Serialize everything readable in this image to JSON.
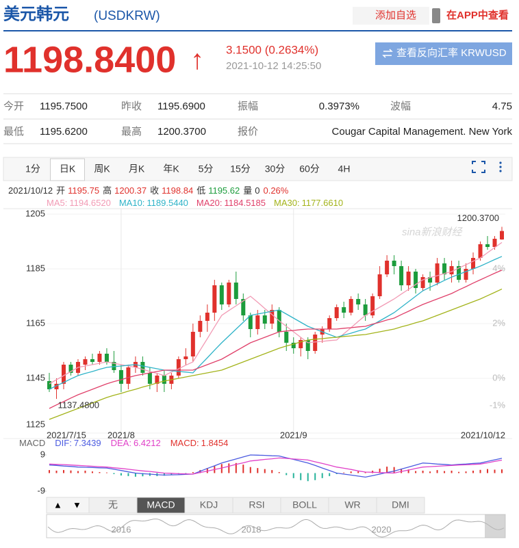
{
  "header": {
    "title": "美元韩元",
    "code": "(USDKRW)",
    "add": "添加自选",
    "app": "在APP中查看"
  },
  "quote": {
    "price": "1198.8400",
    "arrow": "↑",
    "change": "3.1500 (0.2634%)",
    "time": "2021-10-12 14:25:50",
    "reverse_button": "查看反向汇率 KRWUSD"
  },
  "stats": {
    "rows": [
      [
        {
          "label": "今开",
          "value": "1195.7500"
        },
        {
          "label": "昨收",
          "value": "1195.6900"
        },
        {
          "label": "振幅",
          "value": "0.3973%"
        },
        {
          "label": "波幅",
          "value": "4.75"
        }
      ],
      [
        {
          "label": "最低",
          "value": "1195.6200"
        },
        {
          "label": "最高",
          "value": "1200.3700"
        },
        {
          "label": "报价",
          "value": "Cougar Capital Management. New York"
        }
      ]
    ]
  },
  "tabs": {
    "items": [
      "1分",
      "日K",
      "周K",
      "月K",
      "年K",
      "5分",
      "15分",
      "30分",
      "60分",
      "4H"
    ],
    "active": 1
  },
  "ohlc_line": {
    "date": "2021/10/12",
    "items": [
      {
        "label": "开",
        "value": "1195.75",
        "color": "#e0312c"
      },
      {
        "label": "高",
        "value": "1200.37",
        "color": "#e0312c"
      },
      {
        "label": "收",
        "value": "1198.84",
        "color": "#e0312c"
      },
      {
        "label": "低",
        "value": "1195.62",
        "color": "#1c9c3c"
      },
      {
        "label": "量",
        "value": "0",
        "color": "#333333"
      }
    ],
    "change": "0.26%",
    "change_color": "#e0312c"
  },
  "chart_data": {
    "type": "candlestick",
    "watermark": "sina新浪财经",
    "up_color": "#e0312c",
    "down_color": "#1c9c3c",
    "categories": [
      "2021/7/15",
      null,
      null,
      null,
      null,
      null,
      null,
      null,
      null,
      null,
      "2021/8",
      null,
      null,
      null,
      null,
      null,
      null,
      null,
      null,
      null,
      null,
      null,
      null,
      null,
      null,
      null,
      null,
      null,
      null,
      null,
      null,
      null,
      null,
      null,
      "2021/9",
      null,
      null,
      null,
      null,
      null,
      null,
      null,
      null,
      null,
      null,
      null,
      null,
      null,
      null,
      null,
      null,
      null,
      null,
      null,
      null,
      null,
      null,
      null,
      null,
      null,
      null,
      null,
      null,
      "2021/10/12"
    ],
    "ohlc": [
      [
        1144,
        1147,
        1140,
        1141
      ],
      [
        1141,
        1145,
        1137.48,
        1143
      ],
      [
        1143,
        1151,
        1141,
        1150
      ],
      [
        1150,
        1151,
        1146,
        1147
      ],
      [
        1147,
        1152,
        1146,
        1151
      ],
      [
        1150,
        1153,
        1148,
        1152
      ],
      [
        1152,
        1154,
        1150,
        1151
      ],
      [
        1151,
        1155,
        1150,
        1154
      ],
      [
        1154,
        1156,
        1150,
        1151
      ],
      [
        1151,
        1155,
        1147,
        1148
      ],
      [
        1148,
        1150,
        1140,
        1143
      ],
      [
        1143,
        1150,
        1141,
        1149
      ],
      [
        1149,
        1153,
        1147,
        1151
      ],
      [
        1151,
        1153,
        1146,
        1147
      ],
      [
        1147,
        1149,
        1141,
        1143
      ],
      [
        1143,
        1147,
        1140,
        1146
      ],
      [
        1146,
        1148,
        1140,
        1143
      ],
      [
        1143,
        1147,
        1141,
        1146
      ],
      [
        1146,
        1153,
        1145,
        1152
      ],
      [
        1152,
        1156,
        1150,
        1153
      ],
      [
        1153,
        1165,
        1151,
        1162
      ],
      [
        1162,
        1168,
        1160,
        1166
      ],
      [
        1166,
        1172,
        1162,
        1169
      ],
      [
        1169,
        1181,
        1166,
        1179
      ],
      [
        1179,
        1180,
        1170,
        1172
      ],
      [
        1172,
        1181,
        1171,
        1180
      ],
      [
        1180,
        1184,
        1172,
        1174
      ],
      [
        1174,
        1176,
        1166,
        1168
      ],
      [
        1168,
        1169,
        1160,
        1163
      ],
      [
        1163,
        1170,
        1161,
        1168
      ],
      [
        1168,
        1170,
        1163,
        1165
      ],
      [
        1165,
        1172,
        1163,
        1170
      ],
      [
        1170,
        1171,
        1160,
        1162
      ],
      [
        1162,
        1165,
        1155,
        1158
      ],
      [
        1158,
        1160,
        1154,
        1156
      ],
      [
        1156,
        1160,
        1153,
        1159
      ],
      [
        1159,
        1160,
        1152,
        1155
      ],
      [
        1155,
        1162,
        1154,
        1161
      ],
      [
        1161,
        1164,
        1158,
        1163
      ],
      [
        1163,
        1168,
        1162,
        1167
      ],
      [
        1167,
        1172,
        1166,
        1171
      ],
      [
        1171,
        1173,
        1167,
        1169
      ],
      [
        1169,
        1175,
        1168,
        1174
      ],
      [
        1174,
        1176,
        1170,
        1172
      ],
      [
        1172,
        1174,
        1166,
        1168
      ],
      [
        1168,
        1176,
        1167,
        1175
      ],
      [
        1175,
        1186,
        1174,
        1183
      ],
      [
        1183,
        1190,
        1182,
        1188
      ],
      [
        1188,
        1190,
        1183,
        1186
      ],
      [
        1186,
        1188,
        1177,
        1179
      ],
      [
        1179,
        1186,
        1177,
        1184
      ],
      [
        1184,
        1185,
        1176,
        1178
      ],
      [
        1178,
        1183,
        1177,
        1182
      ],
      [
        1182,
        1184,
        1177,
        1180
      ],
      [
        1180,
        1189,
        1179,
        1187
      ],
      [
        1187,
        1189,
        1181,
        1183
      ],
      [
        1183,
        1188,
        1180,
        1186
      ],
      [
        1186,
        1188,
        1180,
        1181
      ],
      [
        1181,
        1187,
        1180,
        1185
      ],
      [
        1185,
        1191,
        1183,
        1189
      ],
      [
        1189,
        1195,
        1188,
        1194
      ],
      [
        1194,
        1197,
        1192,
        1193
      ],
      [
        1193,
        1197,
        1192,
        1196
      ],
      [
        1195.75,
        1200.37,
        1195.62,
        1198.84
      ]
    ],
    "high_label": "1200.3700",
    "low_label": "1137.4800",
    "ylim": [
      1125,
      1207
    ],
    "yticks": [
      1205,
      1185,
      1165,
      1145,
      1125
    ],
    "y2lim": [
      -2,
      6.2
    ],
    "y2ticks": [
      {
        "value": 4,
        "label": "4%"
      },
      {
        "value": 2,
        "label": "2%"
      },
      {
        "value": 0,
        "label": "0%"
      },
      {
        "value": -1,
        "label": "-1%"
      }
    ],
    "ma": {
      "series": [
        {
          "name": "MA5:",
          "label": "1194.6520",
          "color": "#f29bb5",
          "values": [
            1143,
            1144.5,
            1146,
            1147.5,
            1149,
            1149.5,
            1150,
            1150.5,
            1151,
            1150.5,
            1150,
            1149.5,
            1149,
            1148.3,
            1147.5,
            1146.8,
            1146,
            1147.3,
            1148.5,
            1149.8,
            1151,
            1155.3,
            1159.5,
            1163.8,
            1168,
            1169.8,
            1171.5,
            1173.3,
            1175,
            1172.8,
            1170.5,
            1168.3,
            1166,
            1164,
            1162,
            1160,
            1158,
            1158.3,
            1158.5,
            1158.8,
            1159,
            1161.3,
            1163.5,
            1165.8,
            1168,
            1169.5,
            1171,
            1172.5,
            1174,
            1175.8,
            1177.5,
            1179.3,
            1181,
            1181.8,
            1182.5,
            1183.3,
            1184,
            1185.3,
            1186.5,
            1187.8,
            1189,
            1190.9,
            1192.8,
            1194.652
          ]
        },
        {
          "name": "MA10:",
          "label": "1189.5440",
          "color": "#2eb3c8",
          "values": [
            1141,
            1142.3,
            1143.5,
            1144.8,
            1146,
            1146.8,
            1147.5,
            1148.3,
            1149,
            1149.3,
            1149.5,
            1149.8,
            1150,
            1149.5,
            1149,
            1148.5,
            1148,
            1147.8,
            1147.5,
            1147.3,
            1147,
            1149.8,
            1152.5,
            1155.3,
            1158,
            1160.5,
            1163,
            1165.5,
            1168,
            1168.5,
            1169,
            1169.5,
            1170,
            1168.5,
            1167,
            1165.5,
            1164,
            1163,
            1162,
            1161,
            1160,
            1160.8,
            1161.5,
            1162.3,
            1163,
            1164.5,
            1166,
            1167.5,
            1169,
            1171,
            1173,
            1175,
            1177,
            1178.3,
            1179.5,
            1180.8,
            1182,
            1183,
            1184,
            1185,
            1186,
            1187.2,
            1188.4,
            1189.544
          ]
        },
        {
          "name": "MA20:",
          "label": "1184.5185",
          "color": "#e0406a",
          "values": [
            1134,
            1135.3,
            1136.5,
            1137.8,
            1139,
            1140,
            1141,
            1142,
            1143,
            1143.8,
            1144.5,
            1145.3,
            1146,
            1146.5,
            1147,
            1147.5,
            1148,
            1148,
            1148,
            1148,
            1148,
            1149,
            1150,
            1151,
            1152,
            1153.5,
            1155,
            1156.5,
            1158,
            1159,
            1160,
            1161,
            1162,
            1162.3,
            1162.5,
            1162.8,
            1163,
            1163,
            1163,
            1163,
            1163,
            1163.3,
            1163.5,
            1163.8,
            1164,
            1164.8,
            1165.5,
            1166.3,
            1167,
            1168.3,
            1169.5,
            1170.8,
            1172,
            1173,
            1174,
            1175,
            1176,
            1177.3,
            1178.5,
            1179.8,
            1181,
            1182.2,
            1183.4,
            1184.5185
          ]
        },
        {
          "name": "MA30:",
          "label": "1177.6610",
          "color": "#a3b31a",
          "values": [
            1130,
            1131,
            1132,
            1133,
            1134,
            1135,
            1136,
            1137,
            1138,
            1138.8,
            1139.5,
            1140.3,
            1141,
            1141.8,
            1142.5,
            1143.3,
            1144,
            1144.5,
            1145,
            1145.5,
            1146,
            1146.5,
            1147,
            1147.5,
            1148,
            1149,
            1150,
            1151,
            1152,
            1153,
            1154,
            1155,
            1156,
            1156.8,
            1157.5,
            1158.3,
            1159,
            1159.3,
            1159.5,
            1159.8,
            1160,
            1160.3,
            1160.5,
            1160.8,
            1161,
            1161.5,
            1162,
            1162.5,
            1163,
            1163.8,
            1164.5,
            1165.3,
            1166,
            1167,
            1168,
            1169,
            1170,
            1171,
            1172,
            1173,
            1174,
            1175.2,
            1176.4,
            1177.661
          ]
        }
      ]
    },
    "macd": {
      "title": "MACD",
      "ylim": [
        -9,
        9
      ],
      "yticks": [
        9,
        -9
      ],
      "bar_name": "MACD:",
      "bar_label": "1.8454",
      "bar_color": "#e0312c",
      "neg_color": "#26b39a",
      "bars": [
        1.5,
        1.2,
        1.5,
        1.3,
        1.0,
        1.2,
        0.8,
        0.5,
        0.3,
        -0.5,
        -1.2,
        -1.5,
        -1.8,
        -1.6,
        -1.4,
        -1.5,
        -1.3,
        -1.0,
        -0.6,
        -0.2,
        0.5,
        1.5,
        2.5,
        3.5,
        4.5,
        4.8,
        5.0,
        4.2,
        3.0,
        2.5,
        2.0,
        1.5,
        0.5,
        -1.0,
        -2.5,
        -3.5,
        -4.0,
        -3.5,
        -2.5,
        -1.5,
        -0.5,
        0.3,
        0.8,
        0.8,
        0.5,
        1.2,
        2.2,
        3.2,
        3.0,
        2.2,
        1.8,
        1.0,
        1.2,
        0.8,
        1.5,
        1.0,
        1.2,
        0.6,
        0.8,
        1.2,
        1.6,
        2.0,
        1.7,
        1.8454
      ],
      "series": [
        {
          "name": "DIF:",
          "label": "7.3439",
          "color": "#4a5ae0",
          "values": [
            4,
            3.8,
            3.5,
            3.3,
            3,
            2.9,
            2.8,
            2.6,
            2.5,
            1.9,
            1.3,
            0.6,
            0,
            -0.3,
            -0.5,
            -0.8,
            -1,
            -0.9,
            -0.8,
            -0.6,
            -0.5,
            0.9,
            2.3,
            3.6,
            5,
            6,
            7,
            8,
            9,
            8.9,
            8.8,
            8.6,
            8.5,
            7.6,
            6.8,
            5.9,
            5,
            3.8,
            2.5,
            1.3,
            0,
            -0.5,
            -1,
            -1.5,
            -2,
            -1.3,
            -0.5,
            0.3,
            1,
            2,
            3,
            4,
            5,
            4.8,
            4.5,
            4.3,
            4,
            4.3,
            4.5,
            4.8,
            5,
            5.8,
            6.6,
            7.3439
          ]
        },
        {
          "name": "DEA:",
          "label": "6.4212",
          "color": "#e040c8",
          "values": [
            4.5,
            4.3,
            4.2,
            4,
            3.8,
            3.6,
            3.4,
            3.2,
            3,
            2.6,
            2.3,
            1.9,
            1.5,
            1.1,
            0.8,
            0.4,
            0,
            -0.1,
            -0.3,
            -0.4,
            -0.5,
            0.3,
            1,
            1.8,
            2.5,
            3.4,
            4.3,
            5.1,
            6,
            6.4,
            6.8,
            7.1,
            7.5,
            7.3,
            7,
            6.8,
            6.5,
            5.6,
            4.8,
            3.9,
            3,
            2.4,
            1.8,
            1.1,
            0.5,
            0.4,
            0.3,
            0.1,
            0,
            0.8,
            1.5,
            2.3,
            3,
            3.2,
            3.4,
            3.6,
            3.8,
            4,
            4.1,
            4.3,
            4.5,
            5.1,
            5.8,
            6.4212
          ]
        }
      ]
    }
  },
  "indicators": {
    "arrows": [
      "▲",
      "▼"
    ],
    "items": [
      "无",
      "MACD",
      "KDJ",
      "RSI",
      "BOLL",
      "WR",
      "DMI"
    ],
    "active": 1
  },
  "navigator": {
    "years": [
      "2016",
      "2018",
      "2020"
    ]
  }
}
